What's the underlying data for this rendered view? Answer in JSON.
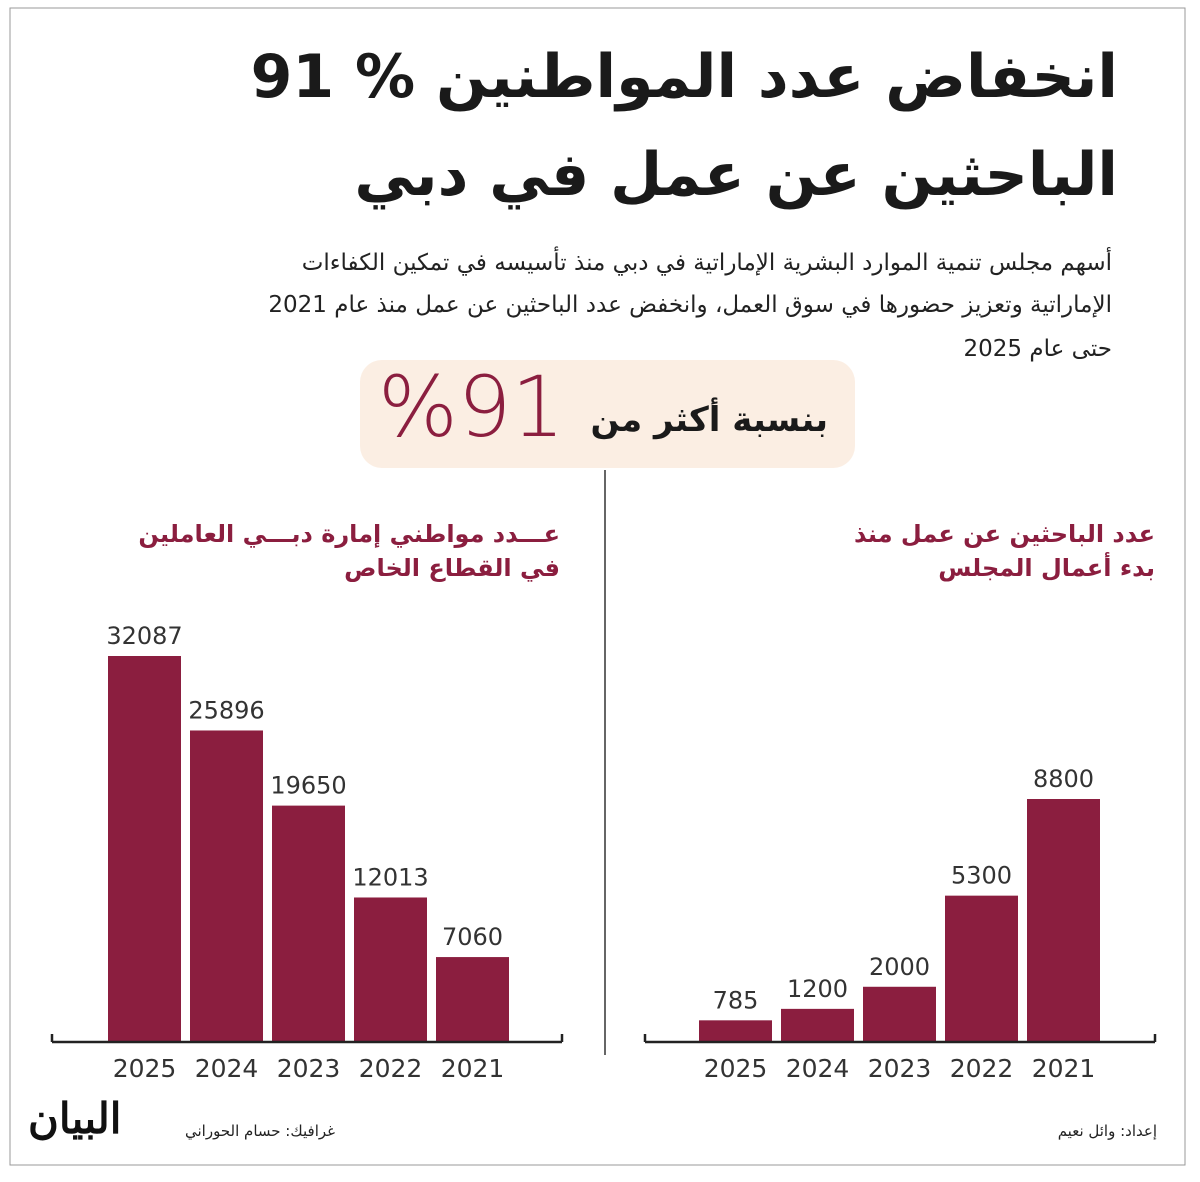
{
  "headline": [
    "91 % انخفاض عدد المواطنين",
    "الباحثين عن عمل في دبي"
  ],
  "description": [
    "أسهم مجلس تنمية الموارد البشرية الإماراتية في دبي منذ تأسيسه في تمكين الكفاءات",
    "الإماراتية وتعزيز حضورها في سوق العمل، وانخفض عدد الباحثين عن عمل منذ عام 2021",
    "حتى عام 2025"
  ],
  "highlight": {
    "figure": "%91",
    "text": "بنسبة أكثر من"
  },
  "chart_data": [
    {
      "type": "bar",
      "title_lines": [
        "عـــدد مواطني إمارة دبـــي العاملين",
        "في القطاع الخاص"
      ],
      "categories": [
        "2025",
        "2024",
        "2023",
        "2022",
        "2021"
      ],
      "values": [
        32087,
        25896,
        19650,
        12013,
        7060
      ],
      "color": "#8b1e3f"
    },
    {
      "type": "bar",
      "title_lines": [
        "عدد الباحثين عن عمل منذ",
        "بدء أعمال المجلس"
      ],
      "categories": [
        "2025",
        "2024",
        "2023",
        "2022",
        "2021"
      ],
      "values": [
        785,
        1200,
        2000,
        5300,
        8800
      ],
      "color": "#8b1e3f"
    }
  ],
  "credits": {
    "graphics": "غرافيك: حسام الحوراني",
    "prepared": "إعداد: وائل نعيم",
    "logo": "البيان"
  }
}
